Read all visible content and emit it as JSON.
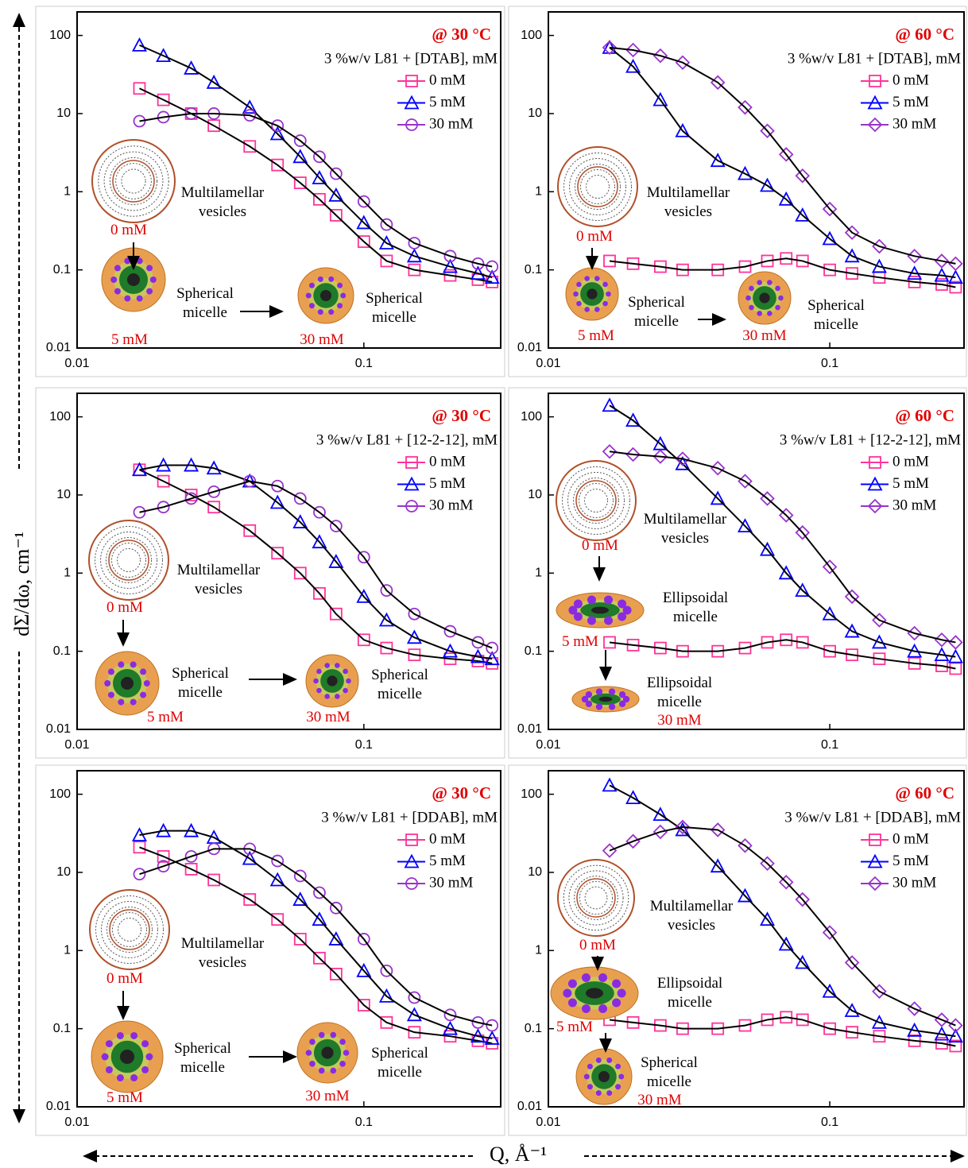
{
  "y_label": "dΣ/dω, cm⁻¹",
  "x_label": "Q, Å⁻¹",
  "chart_data": [
    {
      "type": "scatter",
      "log_x": true,
      "log_y": true,
      "title": "@ 30 °C",
      "legend_title": "3 %w/v L81 + [DTAB], mM",
      "x": [
        0.0165,
        0.02,
        0.025,
        0.03,
        0.04,
        0.05,
        0.06,
        0.07,
        0.08,
        0.1,
        0.12,
        0.15,
        0.2,
        0.25,
        0.28
      ],
      "series": [
        {
          "name": "0 mM",
          "color": "#ff3399",
          "marker": "square",
          "values": [
            21,
            15,
            10,
            7,
            3.8,
            2.2,
            1.3,
            0.8,
            0.5,
            0.23,
            0.13,
            0.1,
            0.085,
            0.075,
            0.07
          ]
        },
        {
          "name": "5 mM",
          "color": "#0000ff",
          "marker": "triangle",
          "values": [
            75,
            55,
            38,
            25,
            12,
            5.5,
            2.8,
            1.5,
            0.9,
            0.4,
            0.22,
            0.15,
            0.11,
            0.09,
            0.08
          ]
        },
        {
          "name": "30 mM",
          "color": "#9933cc",
          "marker": "circle",
          "values": [
            8,
            9,
            10,
            10,
            9.5,
            7,
            4.5,
            2.8,
            1.7,
            0.75,
            0.38,
            0.22,
            0.15,
            0.12,
            0.11
          ]
        }
      ],
      "xlim": [
        0.01,
        0.3
      ],
      "ylim": [
        0.01,
        200
      ],
      "xticks": [
        0.01,
        0.1
      ],
      "yticks": [
        0.01,
        0.1,
        1,
        10,
        100
      ],
      "annotations": [
        "Multilamellar vesicles",
        "0 mM",
        "Spherical micelle",
        "5 mM",
        "Spherical micelle",
        "30 mM"
      ]
    },
    {
      "type": "scatter",
      "log_x": true,
      "log_y": true,
      "title": "@ 60 °C",
      "legend_title": "3 %w/v L81 + [DTAB], mM",
      "x": [
        0.0165,
        0.02,
        0.025,
        0.03,
        0.04,
        0.05,
        0.06,
        0.07,
        0.08,
        0.1,
        0.12,
        0.15,
        0.2,
        0.25,
        0.28
      ],
      "series": [
        {
          "name": "0 mM",
          "color": "#ff3399",
          "marker": "square",
          "values": [
            0.13,
            0.12,
            0.11,
            0.1,
            0.1,
            0.11,
            0.13,
            0.14,
            0.13,
            0.1,
            0.09,
            0.08,
            0.07,
            0.065,
            0.06
          ]
        },
        {
          "name": "5 mM",
          "color": "#0000ff",
          "marker": "triangle",
          "values": [
            70,
            40,
            15,
            6,
            2.5,
            1.7,
            1.2,
            0.8,
            0.5,
            0.25,
            0.15,
            0.11,
            0.09,
            0.085,
            0.08
          ]
        },
        {
          "name": "30 mM",
          "color": "#9933cc",
          "marker": "diamond",
          "values": [
            70,
            65,
            55,
            45,
            25,
            12,
            6,
            3,
            1.6,
            0.6,
            0.3,
            0.2,
            0.15,
            0.13,
            0.12
          ]
        }
      ],
      "xlim": [
        0.01,
        0.3
      ],
      "ylim": [
        0.01,
        200
      ],
      "xticks": [
        0.01,
        0.1
      ],
      "yticks": [
        0.01,
        0.1,
        1,
        10,
        100
      ],
      "annotations": [
        "Multilamellar vesicles",
        "0 mM",
        "Spherical micelle",
        "5 mM",
        "Spherical micelle",
        "30 mM"
      ]
    },
    {
      "type": "scatter",
      "log_x": true,
      "log_y": true,
      "title": "@ 30 °C",
      "legend_title": "3 %w/v L81 + [12-2-12], mM",
      "x": [
        0.0165,
        0.02,
        0.025,
        0.03,
        0.04,
        0.05,
        0.06,
        0.07,
        0.08,
        0.1,
        0.12,
        0.15,
        0.2,
        0.25,
        0.28
      ],
      "series": [
        {
          "name": "0 mM",
          "color": "#ff3399",
          "marker": "square",
          "values": [
            21,
            15,
            10,
            7,
            3.5,
            1.8,
            1,
            0.55,
            0.3,
            0.14,
            0.11,
            0.09,
            0.08,
            0.075,
            0.07
          ]
        },
        {
          "name": "5 mM",
          "color": "#0000ff",
          "marker": "triangle",
          "values": [
            21,
            24,
            24,
            22,
            15,
            8,
            4.5,
            2.5,
            1.4,
            0.5,
            0.25,
            0.15,
            0.1,
            0.085,
            0.08
          ]
        },
        {
          "name": "30 mM",
          "color": "#9933cc",
          "marker": "circle",
          "values": [
            6,
            7,
            9,
            11,
            15,
            13,
            9,
            6,
            4,
            1.6,
            0.6,
            0.3,
            0.18,
            0.13,
            0.11
          ]
        }
      ],
      "xlim": [
        0.01,
        0.3
      ],
      "ylim": [
        0.01,
        200
      ],
      "xticks": [
        0.01,
        0.1
      ],
      "yticks": [
        0.01,
        0.1,
        1,
        10,
        100
      ],
      "annotations": [
        "Multilamellar vesicles",
        "0 mM",
        "Spherical micelle",
        "5 mM",
        "Spherical micelle",
        "30 mM"
      ]
    },
    {
      "type": "scatter",
      "log_x": true,
      "log_y": true,
      "title": "@ 60 °C",
      "legend_title": "3 %w/v L81 + [12-2-12], mM",
      "x": [
        0.0165,
        0.02,
        0.025,
        0.03,
        0.04,
        0.05,
        0.06,
        0.07,
        0.08,
        0.1,
        0.12,
        0.15,
        0.2,
        0.25,
        0.28
      ],
      "series": [
        {
          "name": "0 mM",
          "color": "#ff3399",
          "marker": "square",
          "values": [
            0.13,
            0.12,
            0.11,
            0.1,
            0.1,
            0.11,
            0.13,
            0.14,
            0.13,
            0.1,
            0.09,
            0.08,
            0.07,
            0.065,
            0.06
          ]
        },
        {
          "name": "5 mM",
          "color": "#0000ff",
          "marker": "triangle",
          "values": [
            140,
            90,
            45,
            25,
            9,
            4,
            2,
            1,
            0.6,
            0.3,
            0.18,
            0.13,
            0.1,
            0.09,
            0.085
          ]
        },
        {
          "name": "30 mM",
          "color": "#9933cc",
          "marker": "diamond",
          "values": [
            36,
            33,
            31,
            29,
            22,
            15,
            9,
            5.5,
            3.3,
            1.2,
            0.5,
            0.25,
            0.17,
            0.14,
            0.13
          ]
        }
      ],
      "xlim": [
        0.01,
        0.3
      ],
      "ylim": [
        0.01,
        200
      ],
      "xticks": [
        0.01,
        0.1
      ],
      "yticks": [
        0.01,
        0.1,
        1,
        10,
        100
      ],
      "annotations": [
        "Multilamellar vesicles",
        "0 mM",
        "Ellipsoidal micelle",
        "5 mM",
        "Ellipsoidal micelle",
        "30 mM"
      ]
    },
    {
      "type": "scatter",
      "log_x": true,
      "log_y": true,
      "title": "@ 30 °C",
      "legend_title": "3 %w/v L81 + [DDAB], mM",
      "x": [
        0.0165,
        0.02,
        0.025,
        0.03,
        0.04,
        0.05,
        0.06,
        0.07,
        0.08,
        0.1,
        0.12,
        0.15,
        0.2,
        0.25,
        0.28
      ],
      "series": [
        {
          "name": "0 mM",
          "color": "#ff3399",
          "marker": "square",
          "values": [
            21,
            16,
            11,
            8,
            4.5,
            2.5,
            1.4,
            0.8,
            0.5,
            0.2,
            0.12,
            0.09,
            0.08,
            0.07,
            0.065
          ]
        },
        {
          "name": "5 mM",
          "color": "#0000ff",
          "marker": "triangle",
          "values": [
            30,
            34,
            34,
            28,
            15,
            8,
            4.5,
            2.5,
            1.4,
            0.55,
            0.26,
            0.15,
            0.1,
            0.08,
            0.075
          ]
        },
        {
          "name": "30 mM",
          "color": "#9933cc",
          "marker": "circle",
          "values": [
            9.5,
            12,
            16,
            20,
            20,
            14,
            9,
            5.5,
            3.5,
            1.4,
            0.55,
            0.25,
            0.15,
            0.12,
            0.11
          ]
        }
      ],
      "xlim": [
        0.01,
        0.3
      ],
      "ylim": [
        0.01,
        200
      ],
      "xticks": [
        0.01,
        0.1
      ],
      "yticks": [
        0.01,
        0.1,
        1,
        10,
        100
      ],
      "annotations": [
        "Multilamellar vesicles",
        "0 mM",
        "Spherical micelle",
        "5 mM",
        "Spherical micelle",
        "30 mM"
      ]
    },
    {
      "type": "scatter",
      "log_x": true,
      "log_y": true,
      "title": "@ 60 °C",
      "legend_title": "3 %w/v L81 + [DDAB], mM",
      "x": [
        0.0165,
        0.02,
        0.025,
        0.03,
        0.04,
        0.05,
        0.06,
        0.07,
        0.08,
        0.1,
        0.12,
        0.15,
        0.2,
        0.25,
        0.28
      ],
      "series": [
        {
          "name": "0 mM",
          "color": "#ff3399",
          "marker": "square",
          "values": [
            0.13,
            0.12,
            0.11,
            0.1,
            0.1,
            0.11,
            0.13,
            0.14,
            0.13,
            0.1,
            0.09,
            0.08,
            0.07,
            0.065,
            0.06
          ]
        },
        {
          "name": "5 mM",
          "color": "#0000ff",
          "marker": "triangle",
          "values": [
            130,
            90,
            55,
            35,
            12,
            5,
            2.5,
            1.2,
            0.7,
            0.3,
            0.17,
            0.12,
            0.095,
            0.085,
            0.08
          ]
        },
        {
          "name": "30 mM",
          "color": "#9933cc",
          "marker": "diamond",
          "values": [
            19,
            25,
            33,
            38,
            35,
            22,
            13,
            7.5,
            4.5,
            1.7,
            0.7,
            0.3,
            0.18,
            0.13,
            0.11
          ]
        }
      ],
      "xlim": [
        0.01,
        0.3
      ],
      "ylim": [
        0.01,
        200
      ],
      "xticks": [
        0.01,
        0.1
      ],
      "yticks": [
        0.01,
        0.1,
        1,
        10,
        100
      ],
      "annotations": [
        "Multilamellar vesicles",
        "0 mM",
        "Ellipsoidal micelle",
        "5 mM",
        "Spherical micelle",
        "30 mM"
      ]
    }
  ]
}
